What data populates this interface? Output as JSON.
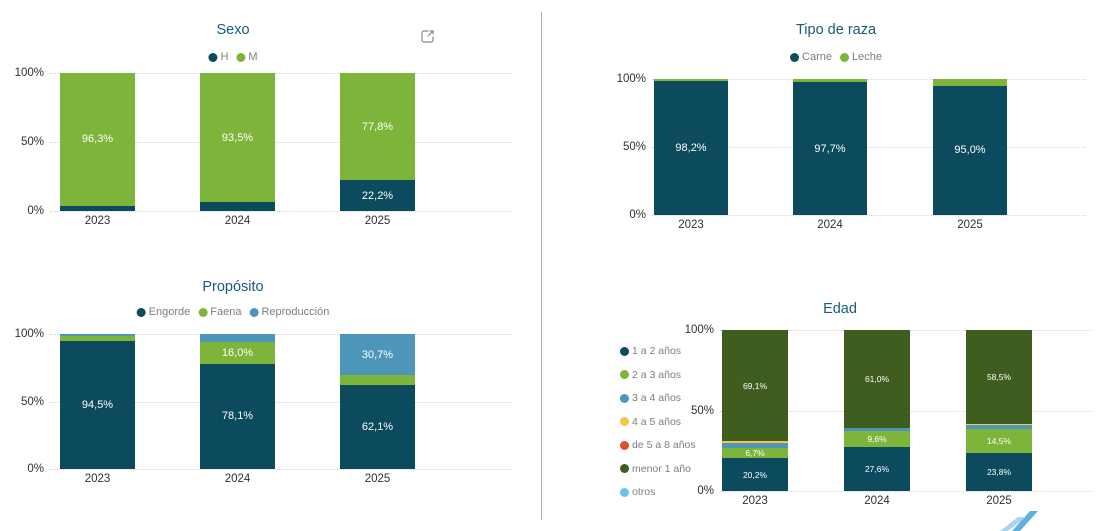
{
  "colors": {
    "dark_teal": "#0C4A5E",
    "green": "#7DB43A",
    "steel_blue": "#4E95BA",
    "yellow": "#F5C648",
    "orange_red": "#E05127",
    "dark_olive": "#3E5D1E",
    "light_blue": "#69C3EC",
    "title": "#175D78"
  },
  "chart_data": [
    {
      "id": "sexo",
      "type": "bar",
      "stacked": true,
      "title": "Sexo",
      "categories": [
        "2023",
        "2024",
        "2025"
      ],
      "y_ticks": [
        "100%",
        "50%",
        "0%"
      ],
      "ylim": [
        0,
        100
      ],
      "legend_position": "top",
      "grid": true,
      "series": [
        {
          "name": "H",
          "color": "#0C4A5E",
          "values": [
            3.7,
            6.5,
            22.2
          ],
          "labels": [
            "",
            "",
            "22,2%"
          ]
        },
        {
          "name": "M",
          "color": "#7DB43A",
          "values": [
            96.3,
            93.5,
            77.8
          ],
          "labels": [
            "96,3%",
            "93,5%",
            "77,8%"
          ]
        }
      ]
    },
    {
      "id": "tipo-de-raza",
      "type": "bar",
      "stacked": true,
      "title": "Tipo de raza",
      "categories": [
        "2023",
        "2024",
        "2025"
      ],
      "y_ticks": [
        "100%",
        "50%",
        "0%"
      ],
      "ylim": [
        0,
        100
      ],
      "legend_position": "top",
      "grid": true,
      "series": [
        {
          "name": "Carne",
          "color": "#0C4A5E",
          "values": [
            98.2,
            97.7,
            95.0
          ],
          "labels": [
            "98,2%",
            "97,7%",
            "95,0%"
          ]
        },
        {
          "name": "Leche",
          "color": "#7DB43A",
          "values": [
            1.8,
            2.3,
            5.0
          ],
          "labels": [
            "",
            "",
            ""
          ]
        }
      ]
    },
    {
      "id": "proposito",
      "type": "bar",
      "stacked": true,
      "title": "Propósito",
      "categories": [
        "2023",
        "2024",
        "2025"
      ],
      "y_ticks": [
        "100%",
        "50%",
        "0%"
      ],
      "ylim": [
        0,
        100
      ],
      "legend_position": "top",
      "grid": true,
      "series": [
        {
          "name": "Engorde",
          "color": "#0C4A5E",
          "values": [
            94.5,
            78.1,
            62.1
          ],
          "labels": [
            "94,5%",
            "78,1%",
            "62,1%"
          ]
        },
        {
          "name": "Faena",
          "color": "#7DB43A",
          "values": [
            4.0,
            16.0,
            7.2
          ],
          "labels": [
            "",
            "16,0%",
            ""
          ]
        },
        {
          "name": "Reproducción",
          "color": "#4E95BA",
          "values": [
            1.5,
            5.9,
            30.7
          ],
          "labels": [
            "",
            "",
            "30,7%"
          ]
        }
      ]
    },
    {
      "id": "edad",
      "type": "bar",
      "stacked": true,
      "title": "Edad",
      "categories": [
        "2023",
        "2024",
        "2025"
      ],
      "y_ticks": [
        "100%",
        "50%",
        "0%"
      ],
      "ylim": [
        0,
        100
      ],
      "legend_position": "left",
      "grid": true,
      "series": [
        {
          "name": "1 a 2 años",
          "color": "#0C4A5E",
          "values": [
            20.2,
            27.6,
            23.8
          ],
          "labels": [
            "20,2%",
            "27,6%",
            "23,8%"
          ]
        },
        {
          "name": "2 a 3 años",
          "color": "#7DB43A",
          "values": [
            6.7,
            9.6,
            14.5
          ],
          "labels": [
            "6,7%",
            "9,6%",
            "14,5%"
          ]
        },
        {
          "name": "3 a 4 años",
          "color": "#4E95BA",
          "values": [
            2.8,
            1.8,
            2.4
          ],
          "labels": [
            "",
            "",
            ""
          ]
        },
        {
          "name": "4 a 5 años",
          "color": "#F5C648",
          "values": [
            1.2,
            0,
            0.8
          ],
          "labels": [
            "",
            "",
            ""
          ]
        },
        {
          "name": "de 5 a 8 años",
          "color": "#E05127",
          "values": [
            0,
            0,
            0
          ],
          "labels": [
            "",
            "",
            ""
          ]
        },
        {
          "name": "menor 1 año",
          "color": "#3E5D1E",
          "values": [
            69.1,
            61.0,
            58.5
          ],
          "labels": [
            "69,1%",
            "61,0%",
            "58,5%"
          ]
        },
        {
          "name": "otros",
          "color": "#69C3EC",
          "values": [
            0,
            0,
            0
          ],
          "labels": [
            "",
            "",
            ""
          ]
        }
      ]
    }
  ]
}
